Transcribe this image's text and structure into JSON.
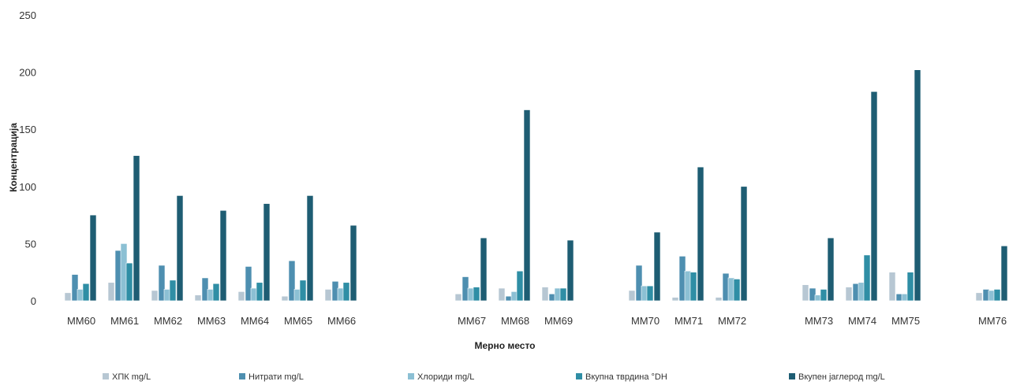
{
  "chart_data": {
    "type": "bar",
    "title": "",
    "xlabel": "Мерно место",
    "ylabel": "Концентрација",
    "ylim": [
      0,
      250
    ],
    "yticks": [
      0,
      50,
      100,
      150,
      200,
      250
    ],
    "grid": false,
    "legend_position": "bottom",
    "categories": [
      "MM60",
      "MM61",
      "MM62",
      "MM63",
      "MM64",
      "MM65",
      "MM66",
      "MM67",
      "MM68",
      "MM69",
      "MM70",
      "MM71",
      "MM72",
      "MM73",
      "MM74",
      "MM75",
      "MM76"
    ],
    "series": [
      {
        "name": "ХПК mg/L",
        "color": "#b7c7d3",
        "values": [
          7,
          16,
          9,
          5,
          8,
          4,
          10,
          6,
          11,
          12,
          9,
          3,
          3,
          14,
          12,
          25,
          7
        ]
      },
      {
        "name": "Нитрати mg/L",
        "color": "#4e8fb0",
        "values": [
          23,
          44,
          31,
          20,
          30,
          35,
          17,
          21,
          4,
          6,
          31,
          39,
          24,
          11,
          15,
          6,
          10
        ]
      },
      {
        "name": "Хлориди mg/L",
        "color": "#8cc0d4",
        "values": [
          10,
          50,
          10,
          10,
          11,
          10,
          11,
          11,
          8,
          11,
          13,
          26,
          20,
          5,
          16,
          6,
          9
        ]
      },
      {
        "name": "Вкупна тврдина °DH",
        "color": "#2f8ea5",
        "values": [
          15,
          33,
          18,
          15,
          16,
          18,
          16,
          12,
          26,
          11,
          13,
          25,
          19,
          10,
          40,
          25,
          10
        ]
      },
      {
        "name": "Вкупен јаглерод mg/L",
        "color": "#1e5d73",
        "values": [
          75,
          127,
          92,
          79,
          85,
          92,
          66,
          55,
          167,
          53,
          60,
          117,
          100,
          55,
          183,
          202,
          48
        ]
      }
    ]
  }
}
